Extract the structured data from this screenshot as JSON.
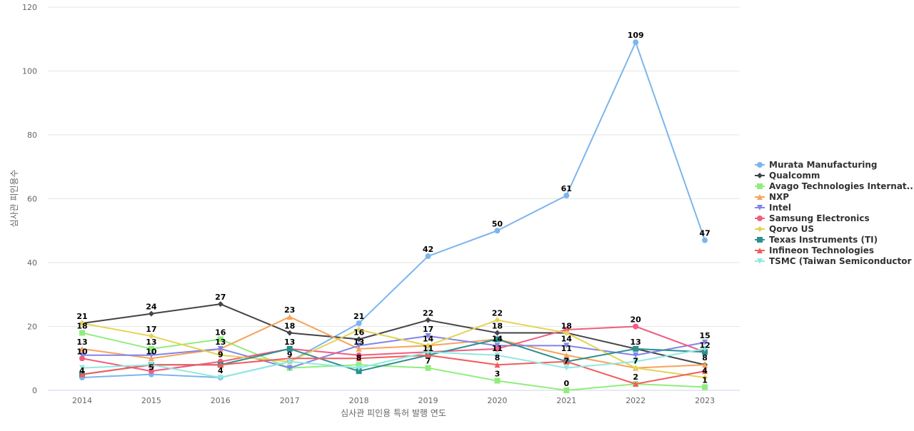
{
  "chart_data": {
    "type": "line",
    "title": "",
    "xlabel": "심사관 피인용 특허 발행 연도",
    "ylabel": "심사관 피인용수",
    "ylim": [
      0,
      120
    ],
    "yticks": [
      0,
      20,
      40,
      60,
      80,
      100,
      120
    ],
    "grid": true,
    "legend_position": "right",
    "categories": [
      "2014",
      "2015",
      "2016",
      "2017",
      "2018",
      "2019",
      "2020",
      "2021",
      "2022",
      "2023"
    ],
    "series": [
      {
        "name": "Murata Manufacturing",
        "color": "#7cb5ec",
        "marker": "circle",
        "values": [
          4,
          5,
          4,
          9,
          21,
          42,
          50,
          61,
          109,
          47
        ]
      },
      {
        "name": "Qualcomm",
        "color": "#434348",
        "marker": "diamond",
        "values": [
          21,
          24,
          27,
          18,
          16,
          22,
          18,
          18,
          13,
          8
        ]
      },
      {
        "name": "Avago Technologies Internat...",
        "color": "#90ed7d",
        "marker": "square",
        "values": [
          18,
          13,
          16,
          7,
          8,
          7,
          3,
          0,
          2,
          1
        ]
      },
      {
        "name": "NXP",
        "color": "#f7a35c",
        "marker": "triangle",
        "values": [
          13,
          10,
          13,
          23,
          13,
          14,
          16,
          11,
          7,
          8
        ]
      },
      {
        "name": "Intel",
        "color": "#8085e9",
        "marker": "triangle-down",
        "values": [
          11,
          11,
          13,
          7,
          14,
          17,
          14,
          14,
          11,
          15
        ]
      },
      {
        "name": "Samsung Electronics",
        "color": "#f15c80",
        "marker": "circle",
        "values": [
          10,
          6,
          9,
          13,
          11,
          12,
          13,
          19,
          20,
          12
        ]
      },
      {
        "name": "Qorvo US",
        "color": "#e4d354",
        "marker": "diamond",
        "values": [
          21,
          17,
          11,
          9,
          19,
          14,
          22,
          18,
          7,
          4
        ]
      },
      {
        "name": "Texas Instruments (TI)",
        "color": "#2b908f",
        "marker": "square",
        "values": [
          5,
          8,
          8,
          13,
          6,
          11,
          16,
          9,
          13,
          12
        ]
      },
      {
        "name": "Infineon Technologies",
        "color": "#f45b5b",
        "marker": "triangle",
        "values": [
          5,
          8,
          8,
          10,
          10,
          11,
          8,
          9,
          2,
          6
        ]
      },
      {
        "name": "TSMC (Taiwan Semiconductor ...",
        "color": "#91e8e1",
        "marker": "triangle-down",
        "values": [
          7,
          8,
          4,
          9,
          7,
          12,
          11,
          7,
          9,
          13
        ]
      }
    ],
    "data_labels": [
      {
        "cat": "2014",
        "y": 21,
        "text": "21"
      },
      {
        "cat": "2014",
        "y": 18,
        "text": "18"
      },
      {
        "cat": "2014",
        "y": 13,
        "text": "13"
      },
      {
        "cat": "2014",
        "y": 10,
        "text": "10"
      },
      {
        "cat": "2014",
        "y": 4,
        "text": "4"
      },
      {
        "cat": "2015",
        "y": 24,
        "text": "24"
      },
      {
        "cat": "2015",
        "y": 17,
        "text": "17"
      },
      {
        "cat": "2015",
        "y": 13,
        "text": "13"
      },
      {
        "cat": "2015",
        "y": 10,
        "text": "10"
      },
      {
        "cat": "2015",
        "y": 5,
        "text": "5"
      },
      {
        "cat": "2016",
        "y": 27,
        "text": "27"
      },
      {
        "cat": "2016",
        "y": 16,
        "text": "16"
      },
      {
        "cat": "2016",
        "y": 13,
        "text": "13"
      },
      {
        "cat": "2016",
        "y": 9,
        "text": "9"
      },
      {
        "cat": "2016",
        "y": 4,
        "text": "4"
      },
      {
        "cat": "2017",
        "y": 23,
        "text": "23"
      },
      {
        "cat": "2017",
        "y": 18,
        "text": "18"
      },
      {
        "cat": "2017",
        "y": 13,
        "text": "13"
      },
      {
        "cat": "2017",
        "y": 9,
        "text": "9"
      },
      {
        "cat": "2018",
        "y": 21,
        "text": "21"
      },
      {
        "cat": "2018",
        "y": 16,
        "text": "16"
      },
      {
        "cat": "2018",
        "y": 13,
        "text": "13"
      },
      {
        "cat": "2018",
        "y": 8,
        "text": "8"
      },
      {
        "cat": "2019",
        "y": 42,
        "text": "42"
      },
      {
        "cat": "2019",
        "y": 22,
        "text": "22"
      },
      {
        "cat": "2019",
        "y": 17,
        "text": "17"
      },
      {
        "cat": "2019",
        "y": 14,
        "text": "14"
      },
      {
        "cat": "2019",
        "y": 11,
        "text": "11"
      },
      {
        "cat": "2019",
        "y": 7,
        "text": "7"
      },
      {
        "cat": "2020",
        "y": 50,
        "text": "50"
      },
      {
        "cat": "2020",
        "y": 22,
        "text": "22"
      },
      {
        "cat": "2020",
        "y": 18,
        "text": "18"
      },
      {
        "cat": "2020",
        "y": 14,
        "text": "14"
      },
      {
        "cat": "2020",
        "y": 11,
        "text": "11"
      },
      {
        "cat": "2020",
        "y": 8,
        "text": "8"
      },
      {
        "cat": "2020",
        "y": 3,
        "text": "3"
      },
      {
        "cat": "2021",
        "y": 61,
        "text": "61"
      },
      {
        "cat": "2021",
        "y": 18,
        "text": "18"
      },
      {
        "cat": "2021",
        "y": 14,
        "text": "14"
      },
      {
        "cat": "2021",
        "y": 11,
        "text": "11"
      },
      {
        "cat": "2021",
        "y": 7,
        "text": "7"
      },
      {
        "cat": "2021",
        "y": 0,
        "text": "0"
      },
      {
        "cat": "2022",
        "y": 109,
        "text": "109"
      },
      {
        "cat": "2022",
        "y": 20,
        "text": "20"
      },
      {
        "cat": "2022",
        "y": 13,
        "text": "13"
      },
      {
        "cat": "2022",
        "y": 7,
        "text": "7"
      },
      {
        "cat": "2022",
        "y": 2,
        "text": "2"
      },
      {
        "cat": "2023",
        "y": 47,
        "text": "47"
      },
      {
        "cat": "2023",
        "y": 15,
        "text": "15"
      },
      {
        "cat": "2023",
        "y": 12,
        "text": "12"
      },
      {
        "cat": "2023",
        "y": 8,
        "text": "8"
      },
      {
        "cat": "2023",
        "y": 4,
        "text": "4"
      },
      {
        "cat": "2023",
        "y": 1,
        "text": "1"
      }
    ]
  }
}
